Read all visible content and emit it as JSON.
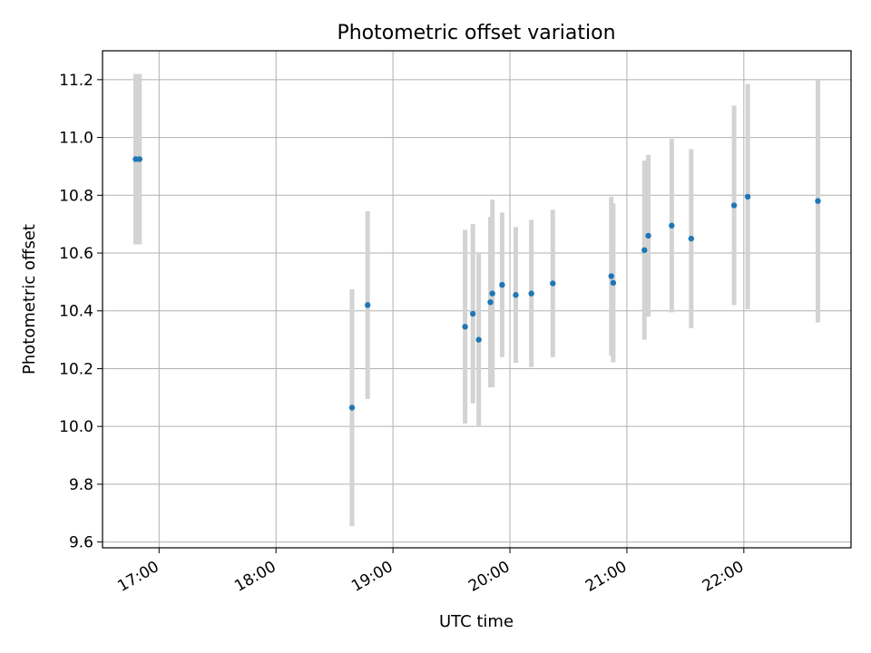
{
  "chart_data": {
    "type": "scatter",
    "title": "Photometric offset variation",
    "xlabel": "UTC time",
    "ylabel": "Photometric offset",
    "x_ticks": [
      "17:00",
      "18:00",
      "19:00",
      "20:00",
      "21:00",
      "22:00"
    ],
    "y_ticks": [
      "9.6",
      "9.8",
      "10.0",
      "10.2",
      "10.4",
      "10.6",
      "10.8",
      "11.0",
      "11.2"
    ],
    "xlim": [
      "16:31",
      "22:55"
    ],
    "ylim": [
      9.58,
      11.3
    ],
    "grid": true,
    "colors": {
      "point": "#1f77b4",
      "errorbar": "#d3d3d3",
      "grid": "#b0b0b0"
    },
    "points": [
      {
        "x": "16:48",
        "y": 10.925,
        "err": 0.295
      },
      {
        "x": "16:50",
        "y": 10.925,
        "err": 0.295
      },
      {
        "x": "18:39",
        "y": 10.065,
        "err": 0.41
      },
      {
        "x": "18:47",
        "y": 10.42,
        "err": 0.325
      },
      {
        "x": "19:37",
        "y": 10.345,
        "err": 0.335
      },
      {
        "x": "19:41",
        "y": 10.39,
        "err": 0.31
      },
      {
        "x": "19:44",
        "y": 10.3,
        "err": 0.3
      },
      {
        "x": "19:50",
        "y": 10.43,
        "err": 0.295
      },
      {
        "x": "19:51",
        "y": 10.46,
        "err": 0.325
      },
      {
        "x": "19:56",
        "y": 10.49,
        "err": 0.25
      },
      {
        "x": "20:03",
        "y": 10.455,
        "err": 0.235
      },
      {
        "x": "20:11",
        "y": 10.46,
        "err": 0.255
      },
      {
        "x": "20:22",
        "y": 10.495,
        "err": 0.255
      },
      {
        "x": "20:52",
        "y": 10.52,
        "err": 0.275
      },
      {
        "x": "20:53",
        "y": 10.497,
        "err": 0.275
      },
      {
        "x": "21:09",
        "y": 10.61,
        "err": 0.31
      },
      {
        "x": "21:11",
        "y": 10.66,
        "err": 0.28
      },
      {
        "x": "21:23",
        "y": 10.695,
        "err": 0.3
      },
      {
        "x": "21:33",
        "y": 10.65,
        "err": 0.31
      },
      {
        "x": "21:55",
        "y": 10.765,
        "err": 0.345
      },
      {
        "x": "22:02",
        "y": 10.795,
        "err": 0.39
      },
      {
        "x": "22:38",
        "y": 10.78,
        "err": 0.42
      }
    ]
  }
}
